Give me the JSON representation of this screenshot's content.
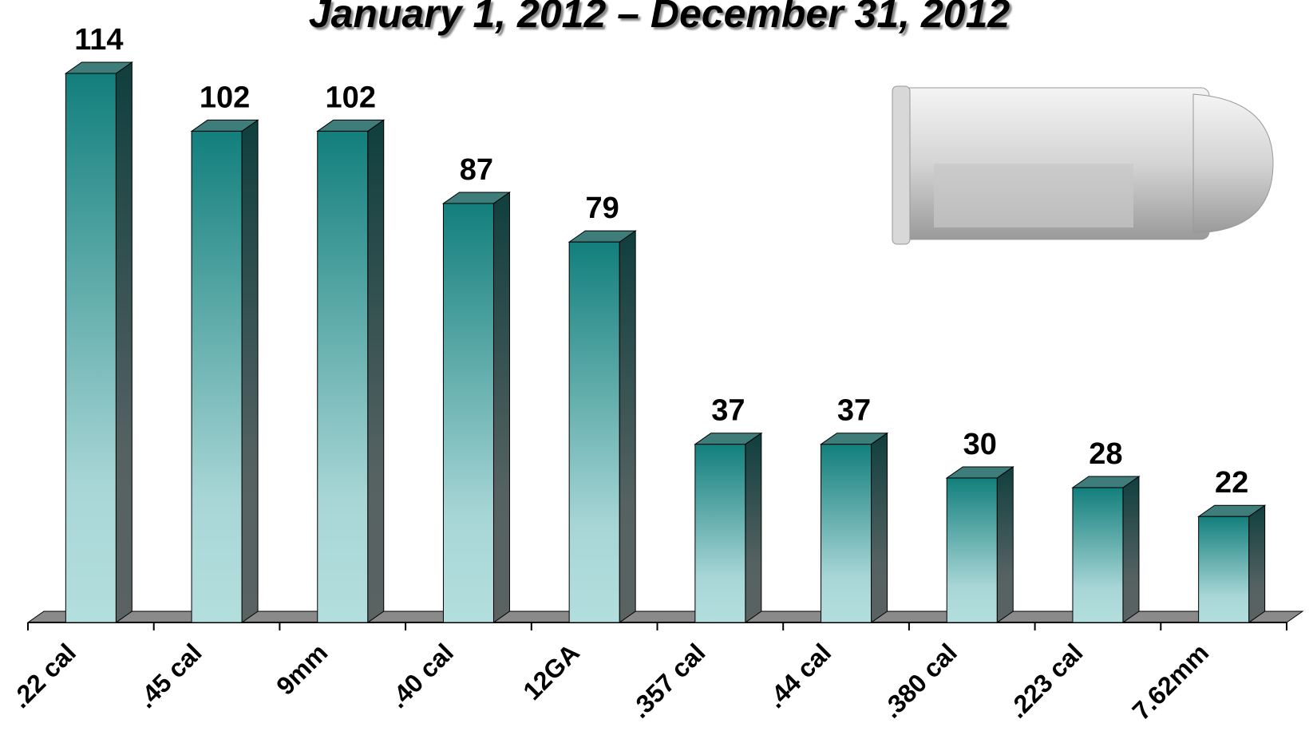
{
  "chart_data": {
    "type": "bar",
    "title": "January 1, 2012 – December 31, 2012",
    "categories": [
      ".22 cal",
      ".45 cal",
      "9mm",
      ".40 cal",
      "12GA",
      ".357 cal",
      ".44 cal",
      ".380 cal",
      ".223 cal",
      "7.62mm"
    ],
    "values": [
      114,
      102,
      102,
      87,
      79,
      37,
      37,
      30,
      28,
      22
    ],
    "color": "#127f7c"
  }
}
